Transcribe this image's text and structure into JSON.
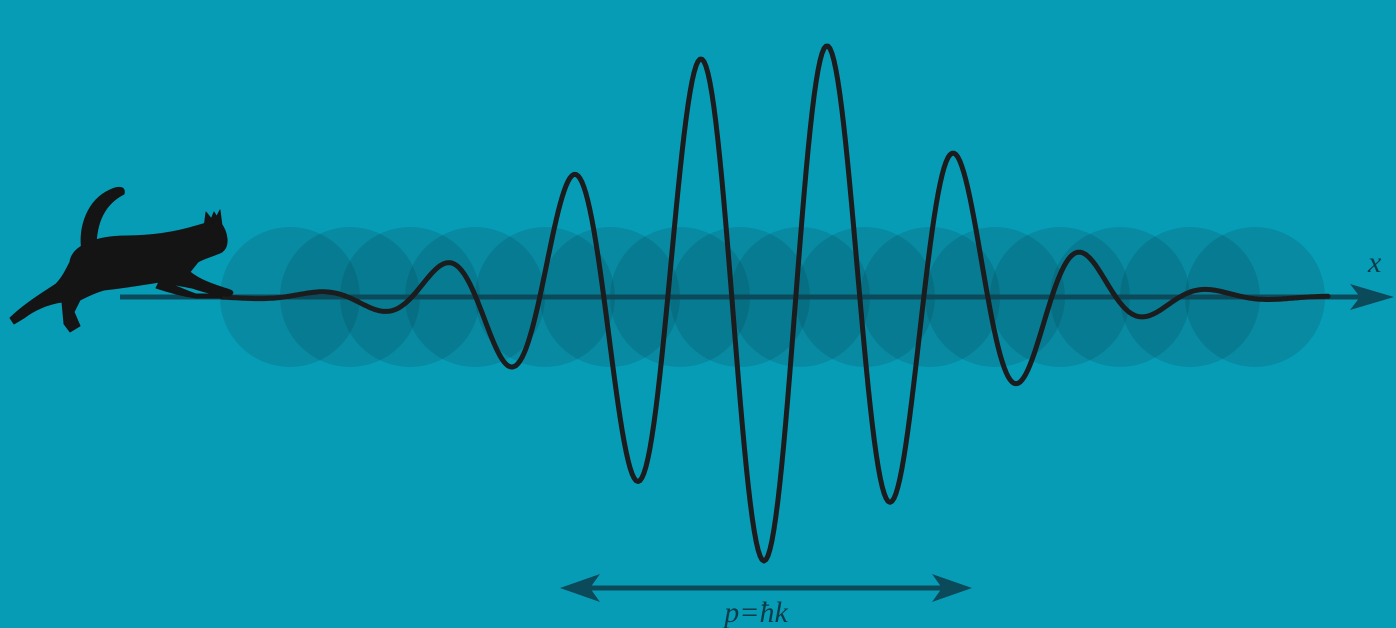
{
  "colors": {
    "background": "#079cb6",
    "axis": "#0b4a5a",
    "wave": "#1a1c1e",
    "blob": "#0a3642",
    "cat": "#141414"
  },
  "labels": {
    "x_axis": "x",
    "momentum": "p=ħk"
  },
  "icons": {
    "cat": "cat-silhouette-icon"
  }
}
